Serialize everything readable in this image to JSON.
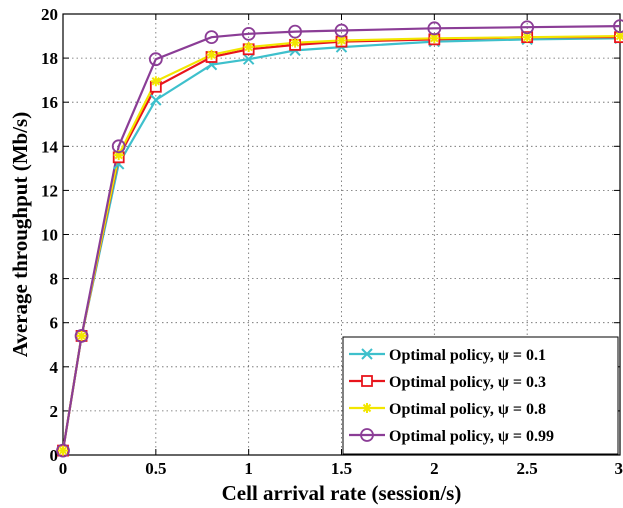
{
  "chart_data": {
    "type": "line",
    "xlabel": "Cell arrival rate (session/s)",
    "ylabel": "Average throughput (Mb/s)",
    "xlim": [
      0,
      3
    ],
    "ylim": [
      0,
      20
    ],
    "x_ticks": [
      "0",
      "0.5",
      "1",
      "1.5",
      "2",
      "2.5",
      "3"
    ],
    "y_ticks": [
      "0",
      "2",
      "4",
      "6",
      "8",
      "10",
      "12",
      "14",
      "16",
      "18",
      "20"
    ],
    "grid": true,
    "legend_position": "bottom-right",
    "x": [
      0,
      0.1,
      0.3,
      0.5,
      0.8,
      1,
      1.25,
      1.5,
      2,
      2.5,
      3
    ],
    "series": [
      {
        "name": "Optimal policy, ψ = 0.1",
        "color": "#3ec0cc",
        "marker": "x",
        "values": [
          0.2,
          5.4,
          13.2,
          16.1,
          17.7,
          17.95,
          18.35,
          18.5,
          18.75,
          18.85,
          18.9
        ]
      },
      {
        "name": "Optimal policy, ψ = 0.3",
        "color": "#e8141c",
        "marker": "square",
        "values": [
          0.2,
          5.4,
          13.5,
          16.7,
          18.05,
          18.4,
          18.6,
          18.75,
          18.85,
          18.95,
          18.95
        ]
      },
      {
        "name": "Optimal policy, ψ = 0.8",
        "color": "#f2e600",
        "marker": "star",
        "values": [
          0.2,
          5.4,
          13.6,
          16.95,
          18.15,
          18.5,
          18.7,
          18.8,
          18.9,
          18.95,
          19.0
        ]
      },
      {
        "name": "Optimal policy, ψ = 0.99",
        "color": "#8b3d96",
        "marker": "circle",
        "values": [
          0.2,
          5.4,
          14.0,
          17.95,
          18.95,
          19.1,
          19.2,
          19.25,
          19.35,
          19.4,
          19.45
        ]
      }
    ]
  }
}
